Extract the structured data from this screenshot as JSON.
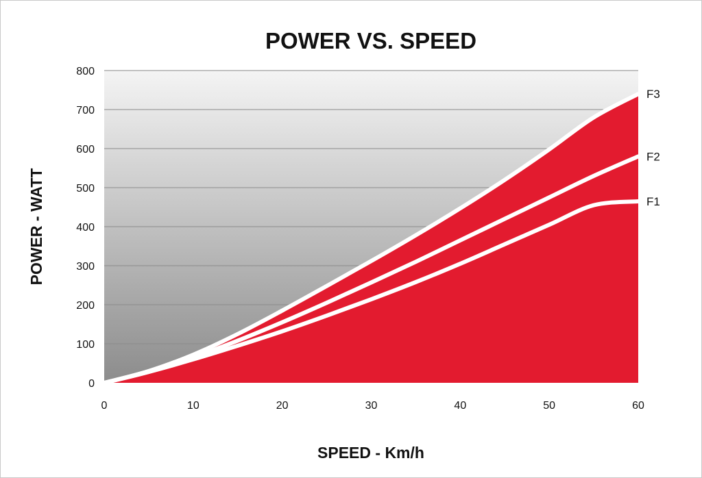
{
  "chart_data": {
    "type": "area",
    "title": "POWER VS. SPEED",
    "xlabel": "SPEED - Km/h",
    "ylabel": "POWER - WATT",
    "xlim": [
      0,
      60
    ],
    "ylim": [
      0,
      800
    ],
    "xticks": [
      "0",
      "10",
      "20",
      "30",
      "40",
      "50",
      "60"
    ],
    "yticks": [
      "0",
      "100",
      "200",
      "300",
      "400",
      "500",
      "600",
      "700",
      "800"
    ],
    "grid": true,
    "colors": {
      "fill": "#e31b2f",
      "line": "#ffffff",
      "bg_top": "#f4f4f4",
      "bg_bottom": "#8c8c8c"
    },
    "x": [
      0,
      5,
      10,
      15,
      20,
      25,
      30,
      35,
      40,
      45,
      50,
      55,
      60
    ],
    "series": [
      {
        "name": "F1",
        "values": [
          0,
          28,
          60,
          95,
          132,
          172,
          214,
          258,
          305,
          355,
          405,
          455,
          465
        ]
      },
      {
        "name": "F2",
        "values": [
          0,
          28,
          65,
          108,
          155,
          205,
          257,
          310,
          365,
          420,
          475,
          530,
          580
        ]
      },
      {
        "name": "F3",
        "values": [
          0,
          30,
          72,
          125,
          185,
          248,
          312,
          378,
          447,
          520,
          598,
          680,
          740
        ]
      }
    ]
  }
}
